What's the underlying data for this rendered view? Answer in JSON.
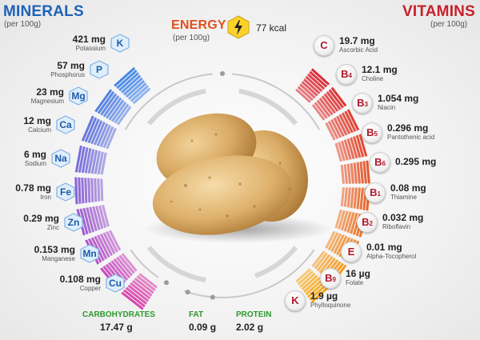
{
  "minerals": {
    "title": "MINERALS",
    "unit": "(per 100g)",
    "items": [
      {
        "amount": "421",
        "unit": "mg",
        "name": "Potassium",
        "symbol": "K",
        "color": "#3b82e6"
      },
      {
        "amount": "57",
        "unit": "mg",
        "name": "Phosphorus",
        "symbol": "P",
        "color": "#4a7ae0"
      },
      {
        "amount": "23",
        "unit": "mg",
        "name": "Magnesium",
        "symbol": "Mg",
        "color": "#5b70dc"
      },
      {
        "amount": "12",
        "unit": "mg",
        "name": "Calcium",
        "symbol": "Ca",
        "color": "#6f66d8"
      },
      {
        "amount": "6",
        "unit": "mg",
        "name": "Sodium",
        "symbol": "Na",
        "color": "#845cd3"
      },
      {
        "amount": "0.78",
        "unit": "mg",
        "name": "Iron",
        "symbol": "Fe",
        "color": "#9a52cc"
      },
      {
        "amount": "0.29",
        "unit": "mg",
        "name": "Zinc",
        "symbol": "Zn",
        "color": "#b048c4"
      },
      {
        "amount": "0.153",
        "unit": "mg",
        "name": "Manganese",
        "symbol": "Mn",
        "color": "#c540b8"
      },
      {
        "amount": "0.108",
        "unit": "mg",
        "name": "Copper",
        "symbol": "Cu",
        "color": "#d73aa8"
      }
    ]
  },
  "vitamins": {
    "title": "VITAMINS",
    "unit": "(per 100g)",
    "items": [
      {
        "amount": "19.7",
        "unit": "mg",
        "name": "Ascorbic Acid",
        "letter": "C",
        "sub": "",
        "color": "#d9202c"
      },
      {
        "amount": "12.1",
        "unit": "mg",
        "name": "Choline",
        "letter": "B",
        "sub": "4",
        "color": "#dc2a2a"
      },
      {
        "amount": "1.054",
        "unit": "mg",
        "name": "Niacin",
        "letter": "B",
        "sub": "3",
        "color": "#df3628"
      },
      {
        "amount": "0.296",
        "unit": "mg",
        "name": "Pantothenic acid",
        "letter": "B",
        "sub": "5",
        "color": "#e24226"
      },
      {
        "amount": "0.295",
        "unit": "mg",
        "name": "",
        "letter": "B",
        "sub": "6",
        "color": "#e54f22"
      },
      {
        "amount": "0.08",
        "unit": "mg",
        "name": "Thiamine",
        "letter": "B",
        "sub": "1",
        "color": "#e85e1e"
      },
      {
        "amount": "0.032",
        "unit": "mg",
        "name": "Riboflavin",
        "letter": "B",
        "sub": "2",
        "color": "#ec6e18"
      },
      {
        "amount": "0.01",
        "unit": "mg",
        "name": "Alpha-Tocopherol",
        "letter": "E",
        "sub": "",
        "color": "#f08214"
      },
      {
        "amount": "16",
        "unit": "µg",
        "name": "Folate",
        "letter": "B",
        "sub": "9",
        "color": "#f49410"
      },
      {
        "amount": "1.9",
        "unit": "µg",
        "name": "Phylloquinone",
        "letter": "K",
        "sub": "",
        "color": "#f6a40e"
      }
    ]
  },
  "energy": {
    "title": "ENERGY",
    "unit": "(per 100g)",
    "value": "77 kcal",
    "icon": "lightning-icon"
  },
  "macros": [
    {
      "label": "CARBOHYDRATES",
      "value": "17.47 g",
      "color": "#2e9a2e"
    },
    {
      "label": "FAT",
      "value": "0.09 g",
      "color": "#2e9a2e"
    },
    {
      "label": "PROTEIN",
      "value": "2.02 g",
      "color": "#2e9a2e"
    }
  ]
}
